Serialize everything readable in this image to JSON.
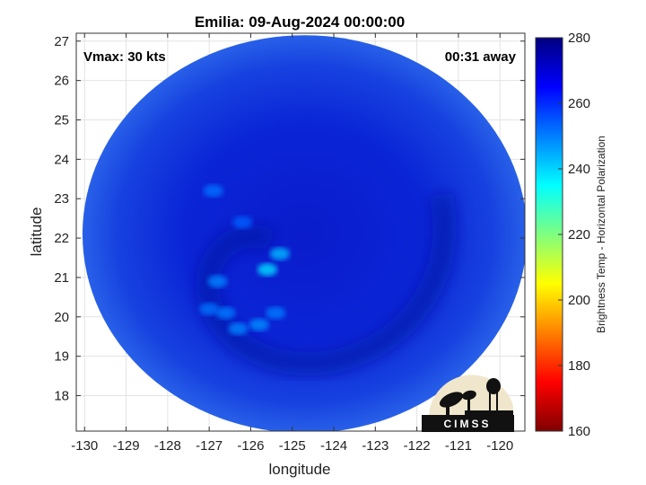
{
  "chart_data": {
    "type": "heatmap",
    "title": "Emilia: 09-Aug-2024 00:00:00",
    "xlabel": "longitude",
    "ylabel": "latitude",
    "xlim": [
      -130.2,
      -119.4
    ],
    "ylim": [
      17.1,
      27.2
    ],
    "x_ticks": [
      -130,
      -129,
      -128,
      -127,
      -126,
      -125,
      -124,
      -123,
      -122,
      -121,
      -120
    ],
    "y_ticks": [
      18,
      19,
      20,
      21,
      22,
      23,
      24,
      25,
      26,
      27
    ],
    "grid": true,
    "annotations": {
      "vmax": "Vmax: 30 kts",
      "time_offset": "00:31 away"
    },
    "colorbar": {
      "label": "Brightness Temp - Horizontal Polarization",
      "range": [
        160,
        280
      ],
      "ticks": [
        160,
        180,
        200,
        220,
        240,
        260,
        280
      ],
      "colormap": "jet"
    },
    "swath": {
      "center": [
        -124.7,
        22.1
      ],
      "radius_lon": 5.35,
      "radius_lat": 5.05,
      "typical_value": 262
    },
    "features": [
      {
        "lon": -125.6,
        "lat": 21.2,
        "value": 240
      },
      {
        "lon": -125.3,
        "lat": 21.6,
        "value": 244
      },
      {
        "lon": -126.8,
        "lat": 20.9,
        "value": 250
      },
      {
        "lon": -126.6,
        "lat": 20.1,
        "value": 251
      },
      {
        "lon": -127.0,
        "lat": 20.2,
        "value": 252
      },
      {
        "lon": -125.8,
        "lat": 19.8,
        "value": 249
      },
      {
        "lon": -126.3,
        "lat": 19.7,
        "value": 250
      },
      {
        "lon": -125.4,
        "lat": 20.1,
        "value": 251
      },
      {
        "lon": -126.9,
        "lat": 23.2,
        "value": 252
      },
      {
        "lon": -126.2,
        "lat": 22.4,
        "value": 254
      }
    ]
  },
  "logo": {
    "text": "CIMSS"
  }
}
